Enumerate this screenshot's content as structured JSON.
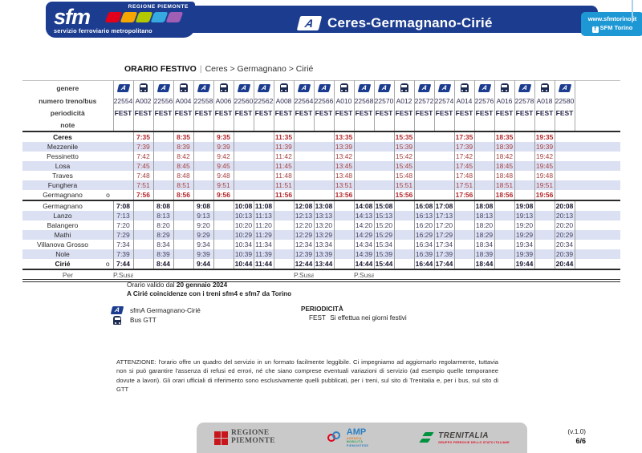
{
  "header": {
    "region_label": "REGIONE PIEMONTE",
    "logo_text": "sfm",
    "tagline": "servizio ferroviario metropolitano",
    "line_colors": [
      "#e2001a",
      "#f7a600",
      "#b2c800",
      "#36a9e1",
      "#a05eb5"
    ],
    "line_badge": "A",
    "title": "Ceres-Germagnano-Cirié",
    "website": "www.sfmtorino.it",
    "social_icon": "f",
    "social": "SFM Torino",
    "colors": {
      "bar": "#1c3c8f",
      "info_box": "#1e98d5"
    }
  },
  "page": {
    "schedule_type": "ORARIO FESTIVO",
    "separator": "|",
    "route": "Ceres > Germagnano > Cirié"
  },
  "timetable": {
    "header_labels": {
      "genere": "genere",
      "numero": "numero treno/bus",
      "periodicita": "periodicità",
      "note": "note"
    },
    "periodicity": "FEST",
    "columns": [
      {
        "number": "22554",
        "type": "train"
      },
      {
        "number": "A002",
        "type": "bus"
      },
      {
        "number": "22556",
        "type": "train"
      },
      {
        "number": "A004",
        "type": "bus"
      },
      {
        "number": "22558",
        "type": "train"
      },
      {
        "number": "A006",
        "type": "bus"
      },
      {
        "number": "22560",
        "type": "train"
      },
      {
        "number": "22562",
        "type": "train"
      },
      {
        "number": "A008",
        "type": "bus"
      },
      {
        "number": "22564",
        "type": "train"
      },
      {
        "number": "22566",
        "type": "train"
      },
      {
        "number": "A010",
        "type": "bus"
      },
      {
        "number": "22568",
        "type": "train"
      },
      {
        "number": "22570",
        "type": "train"
      },
      {
        "number": "A012",
        "type": "bus"
      },
      {
        "number": "22572",
        "type": "train"
      },
      {
        "number": "22574",
        "type": "train"
      },
      {
        "number": "A014",
        "type": "bus"
      },
      {
        "number": "22576",
        "type": "train"
      },
      {
        "number": "A016",
        "type": "bus"
      },
      {
        "number": "22578",
        "type": "train"
      },
      {
        "number": "A018",
        "type": "bus"
      },
      {
        "number": "22580",
        "type": "train"
      }
    ],
    "sections": [
      {
        "rows": [
          {
            "station": "Ceres",
            "marker": "",
            "station_bold": true,
            "times_bold": true,
            "times": [
              null,
              "7:35",
              null,
              "8:35",
              null,
              "9:35",
              null,
              null,
              "11:35",
              null,
              null,
              "13:35",
              null,
              null,
              "15:35",
              null,
              null,
              "17:35",
              null,
              "18:35",
              null,
              "19:35",
              null
            ]
          },
          {
            "station": "Mezzenile",
            "marker": "",
            "station_bold": false,
            "times_bold": false,
            "times": [
              null,
              "7:39",
              null,
              "8:39",
              null,
              "9:39",
              null,
              null,
              "11:39",
              null,
              null,
              "13:39",
              null,
              null,
              "15:39",
              null,
              null,
              "17:39",
              null,
              "18:39",
              null,
              "19:39",
              null
            ]
          },
          {
            "station": "Pessinetto",
            "marker": "",
            "station_bold": false,
            "times_bold": false,
            "times": [
              null,
              "7:42",
              null,
              "8:42",
              null,
              "9:42",
              null,
              null,
              "11:42",
              null,
              null,
              "13:42",
              null,
              null,
              "15:42",
              null,
              null,
              "17:42",
              null,
              "18:42",
              null,
              "19:42",
              null
            ]
          },
          {
            "station": "Losa",
            "marker": "",
            "station_bold": false,
            "times_bold": false,
            "times": [
              null,
              "7:45",
              null,
              "8:45",
              null,
              "9:45",
              null,
              null,
              "11:45",
              null,
              null,
              "13:45",
              null,
              null,
              "15:45",
              null,
              null,
              "17:45",
              null,
              "18:45",
              null,
              "19:45",
              null
            ]
          },
          {
            "station": "Traves",
            "marker": "",
            "station_bold": false,
            "times_bold": false,
            "times": [
              null,
              "7:48",
              null,
              "8:48",
              null,
              "9:48",
              null,
              null,
              "11:48",
              null,
              null,
              "13:48",
              null,
              null,
              "15:48",
              null,
              null,
              "17:48",
              null,
              "18:48",
              null,
              "19:48",
              null
            ]
          },
          {
            "station": "Funghera",
            "marker": "",
            "station_bold": false,
            "times_bold": false,
            "times": [
              null,
              "7:51",
              null,
              "8:51",
              null,
              "9:51",
              null,
              null,
              "11:51",
              null,
              null,
              "13:51",
              null,
              null,
              "15:51",
              null,
              null,
              "17:51",
              null,
              "18:51",
              null,
              "19:51",
              null
            ]
          },
          {
            "station": "Germagnano",
            "marker": "o",
            "station_bold": false,
            "times_bold": true,
            "times": [
              null,
              "7:56",
              null,
              "8:56",
              null,
              "9:56",
              null,
              null,
              "11:56",
              null,
              null,
              "13:56",
              null,
              null,
              "15:56",
              null,
              null,
              "17:56",
              null,
              "18:56",
              null,
              "19:56",
              null
            ]
          }
        ]
      },
      {
        "rows": [
          {
            "station": "Germagnano",
            "marker": "",
            "station_bold": false,
            "times_bold": true,
            "times": [
              "7:08",
              null,
              "8:08",
              null,
              "9:08",
              null,
              "10:08",
              "11:08",
              null,
              "12:08",
              "13:08",
              null,
              "14:08",
              "15:08",
              null,
              "16:08",
              "17:08",
              null,
              "18:08",
              null,
              "19:08",
              null,
              "20:08"
            ]
          },
          {
            "station": "Lanzo",
            "marker": "",
            "station_bold": false,
            "times_bold": false,
            "times": [
              "7:13",
              null,
              "8:13",
              null,
              "9:13",
              null,
              "10:13",
              "11:13",
              null,
              "12:13",
              "13:13",
              null,
              "14:13",
              "15:13",
              null,
              "16:13",
              "17:13",
              null,
              "18:13",
              null,
              "19:13",
              null,
              "20:13"
            ]
          },
          {
            "station": "Balangero",
            "marker": "",
            "station_bold": false,
            "times_bold": false,
            "times": [
              "7:20",
              null,
              "8:20",
              null,
              "9:20",
              null,
              "10:20",
              "11:20",
              null,
              "12:20",
              "13:20",
              null,
              "14:20",
              "15:20",
              null,
              "16:20",
              "17:20",
              null,
              "18:20",
              null,
              "19:20",
              null,
              "20:20"
            ]
          },
          {
            "station": "Mathi",
            "marker": "",
            "station_bold": false,
            "times_bold": false,
            "times": [
              "7:29",
              null,
              "8:29",
              null,
              "9:29",
              null,
              "10:29",
              "11:29",
              null,
              "12:29",
              "13:29",
              null,
              "14:29",
              "15:29",
              null,
              "16:29",
              "17:29",
              null,
              "18:29",
              null,
              "19:29",
              null,
              "20:29"
            ]
          },
          {
            "station": "Villanova Grosso",
            "marker": "",
            "station_bold": false,
            "times_bold": false,
            "times": [
              "7:34",
              null,
              "8:34",
              null,
              "9:34",
              null,
              "10:34",
              "11:34",
              null,
              "12:34",
              "13:34",
              null,
              "14:34",
              "15:34",
              null,
              "16:34",
              "17:34",
              null,
              "18:34",
              null,
              "19:34",
              null,
              "20:34"
            ]
          },
          {
            "station": "Nole",
            "marker": "",
            "station_bold": false,
            "times_bold": false,
            "times": [
              "7:39",
              null,
              "8:39",
              null,
              "9:39",
              null,
              "10:39",
              "11:39",
              null,
              "12:39",
              "13:39",
              null,
              "14:39",
              "15:39",
              null,
              "16:39",
              "17:39",
              null,
              "18:39",
              null,
              "19:39",
              null,
              "20:39"
            ]
          },
          {
            "station": "Cirié",
            "marker": "o",
            "station_bold": true,
            "times_bold": true,
            "times": [
              "7:44",
              null,
              "8:44",
              null,
              "9:44",
              null,
              "10:44",
              "11:44",
              null,
              "12:44",
              "13:44",
              null,
              "14:44",
              "15:44",
              null,
              "16:44",
              "17:44",
              null,
              "18:44",
              null,
              "19:44",
              null,
              "20:44"
            ]
          }
        ]
      }
    ],
    "notes_row": {
      "label": "Per",
      "values": [
        "P.Susa",
        null,
        null,
        null,
        null,
        null,
        null,
        null,
        null,
        "P.Susa",
        null,
        null,
        "P.Susa",
        null,
        null,
        null,
        null,
        null,
        null,
        null,
        null,
        null,
        null
      ]
    }
  },
  "info": {
    "validity_prefix": "Orario valido dal",
    "validity_date": "20 gennaio 2024",
    "connections_note": "A Cirié coincidenze con i treni sfm4 e sfm7 da Torino",
    "legend": [
      {
        "icon": "train",
        "label": "sfmA Germagnano-Cirié"
      },
      {
        "icon": "bus",
        "label": "Bus GTT"
      }
    ],
    "periodicity_title": "PERIODICITÀ",
    "periodicity_code": "FEST",
    "periodicity_desc": "Si effettua nei giorni festivi",
    "attention": "ATTENZIONE: l'orario offre un quadro del servizio in un formato facilmente leggibile. Ci impegniamo ad aggiornarlo regolarmente, tuttavia non si può garantire l'assenza di refusi ed errori, né che siano comprese eventuali variazioni di servizio (ad esempio quelle temporanee dovute a lavori). Gli orari ufficiali di riferimento sono esclusivamente quelli pubblicati, per i treni, sul sito di Trenitalia e, per i bus, sul sito di GTT"
  },
  "footer": {
    "logos": [
      {
        "name": "regione-piemonte",
        "line1": "REGIONE",
        "line2": "PIEMONTE"
      },
      {
        "name": "amp",
        "acronym": "AMP",
        "sub": [
          "AGENZIA",
          "MOBILITÀ",
          "PIEMONTESE"
        ]
      },
      {
        "name": "trenitalia",
        "text": "TRENITALIA",
        "sub": "GRUPPO FERROVIE DELLO STATO ITALIANE"
      }
    ],
    "version": "(v.1.0)",
    "page_number": "6/6"
  }
}
